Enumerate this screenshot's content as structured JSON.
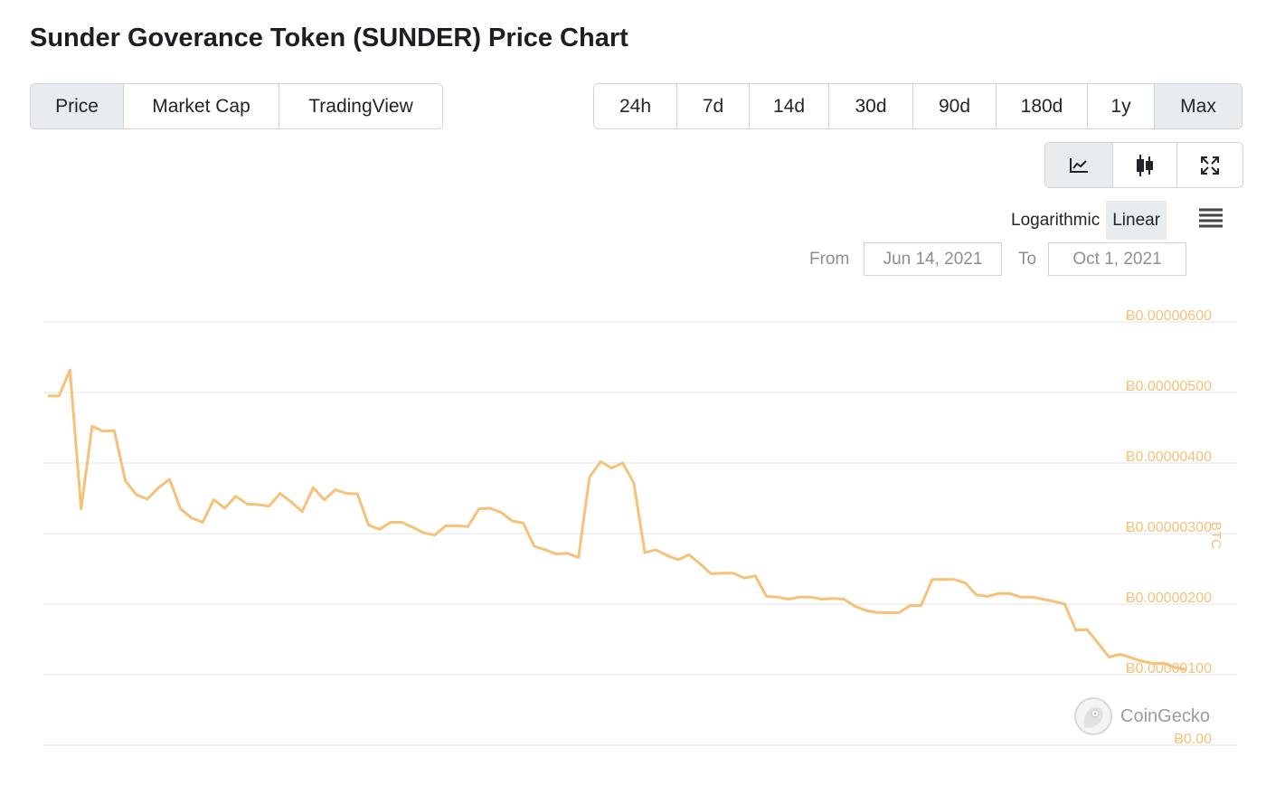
{
  "title": "Sunder Goverance Token (SUNDER) Price Chart",
  "tabs": [
    {
      "label": "Price",
      "active": true
    },
    {
      "label": "Market Cap",
      "active": false
    },
    {
      "label": "TradingView",
      "active": false
    }
  ],
  "ranges": [
    {
      "label": "24h",
      "active": false
    },
    {
      "label": "7d",
      "active": false
    },
    {
      "label": "14d",
      "active": false
    },
    {
      "label": "30d",
      "active": false
    },
    {
      "label": "90d",
      "active": false
    },
    {
      "label": "180d",
      "active": false
    },
    {
      "label": "1y",
      "active": false
    },
    {
      "label": "Max",
      "active": true
    }
  ],
  "views": [
    {
      "icon": "line-chart-icon",
      "active": true
    },
    {
      "icon": "candlestick-icon",
      "active": false
    },
    {
      "icon": "expand-icon",
      "active": false
    }
  ],
  "scale": {
    "log_label": "Logarithmic",
    "linear_label": "Linear",
    "selected": "Linear"
  },
  "dates": {
    "from_label": "From",
    "from_value": "Jun 14, 2021",
    "to_label": "To",
    "to_value": "Oct 1, 2021"
  },
  "watermark": "CoinGecko",
  "colors": {
    "line": "#f6c178",
    "grid": "#e6e6e6",
    "active_bg": "#e9ecef"
  },
  "chart_data": {
    "type": "line",
    "y_axis_title": "BTC",
    "y_axis_position": "right",
    "ylim": [
      0,
      6e-06
    ],
    "yticks": [
      0,
      1e-06,
      2e-06,
      3e-06,
      4e-06,
      5e-06,
      6e-06
    ],
    "ytick_labels": [
      "Ƀ0.00",
      "Ƀ0.00000100",
      "Ƀ0.00000200",
      "Ƀ0.00000300",
      "Ƀ0.00000400",
      "Ƀ0.00000500",
      "Ƀ0.00000600"
    ],
    "grid": true,
    "x_range": [
      "Jun 14, 2021",
      "Oct 1, 2021"
    ],
    "series": [
      {
        "values": [
          4.95,
          4.95,
          5.32,
          3.35,
          4.52,
          4.45,
          4.46,
          3.75,
          3.55,
          3.49,
          3.65,
          3.77,
          3.35,
          3.22,
          3.16,
          3.48,
          3.36,
          3.53,
          3.42,
          3.41,
          3.39,
          3.57,
          3.45,
          3.31,
          3.65,
          3.48,
          3.62,
          3.57,
          3.56,
          3.12,
          3.06,
          3.16,
          3.16,
          3.09,
          3.01,
          2.98,
          3.11,
          3.11,
          3.1,
          3.35,
          3.36,
          3.3,
          3.18,
          3.15,
          2.82,
          2.77,
          2.71,
          2.72,
          2.66,
          3.8,
          4.02,
          3.93,
          4.0,
          3.72,
          2.73,
          2.77,
          2.69,
          2.63,
          2.7,
          2.57,
          2.43,
          2.44,
          2.44,
          2.37,
          2.4,
          2.11,
          2.1,
          2.07,
          2.1,
          2.1,
          2.07,
          2.08,
          2.07,
          1.97,
          1.91,
          1.88,
          1.88,
          1.88,
          1.98,
          1.98,
          2.35,
          2.35,
          2.35,
          2.3,
          2.13,
          2.11,
          2.15,
          2.15,
          2.1,
          2.1,
          2.07,
          2.04,
          2.0,
          1.63,
          1.64,
          1.45,
          1.25,
          1.29,
          1.24,
          1.19,
          1.16,
          1.16,
          1.1,
          1.07
        ]
      }
    ],
    "value_scale": 1e-06
  }
}
